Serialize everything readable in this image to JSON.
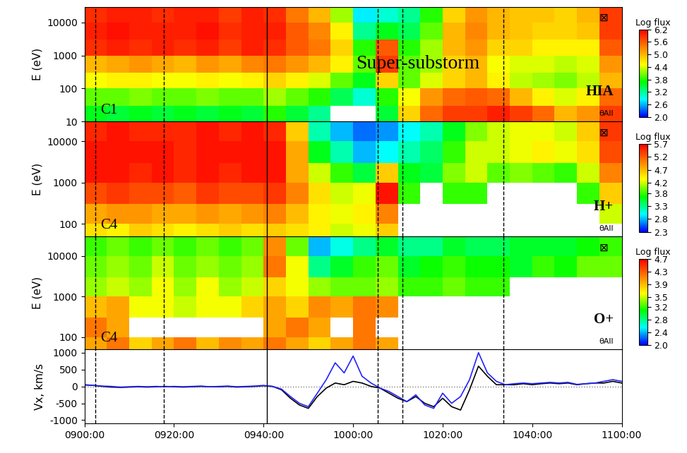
{
  "chart_data": [
    {
      "type": "heatmap",
      "ylabel": "E (eV)",
      "log": "y",
      "tick_labels": "y",
      "spacecraft": "C1",
      "instrument": "HIA",
      "angle": "θAll",
      "symbol": "⊠",
      "annotation": "Super-substorm",
      "xlim": [
        0,
        120
      ],
      "xticks": [
        {
          "value": 0,
          "label": "0900:00"
        },
        {
          "value": 20,
          "label": "0920:00"
        },
        {
          "value": 40,
          "label": "0940:00"
        },
        {
          "value": 60,
          "label": "1000:00"
        },
        {
          "value": 80,
          "label": "1020:00"
        },
        {
          "value": 100,
          "label": "1040:00"
        },
        {
          "value": 120,
          "label": "1100:00"
        }
      ],
      "ylim": [
        10,
        30000
      ],
      "yticks": [
        10,
        100,
        1000,
        10000
      ],
      "vertical_lines": [
        {
          "x": 2.4,
          "line_style": "dashed"
        },
        {
          "x": 17.7,
          "line_style": "dashed"
        },
        {
          "x": 40.8,
          "line_style": "solid"
        },
        {
          "x": 65.5,
          "line_style": "dashed"
        },
        {
          "x": 71,
          "line_style": "dashed"
        },
        {
          "x": 93.5,
          "line_style": "dashed"
        }
      ],
      "x_edges": [
        0,
        5,
        10,
        15,
        20,
        25,
        30,
        35,
        40,
        45,
        50,
        55,
        60,
        65,
        70,
        75,
        80,
        85,
        90,
        95,
        100,
        105,
        110,
        115,
        120
      ],
      "y_edges": [
        10,
        30,
        100,
        300,
        1000,
        3000,
        10000,
        30000
      ],
      "cells": [
        [
          3.6,
          3.5,
          3.6,
          3.5,
          3.6,
          3.5,
          3.6,
          3.5,
          3.8,
          3.5,
          3.2,
          null,
          null,
          3.5,
          4.8,
          5.5,
          5.8,
          5.8,
          6.0,
          5.8,
          5.5,
          5.0,
          5.2,
          5.8
        ],
        [
          4.0,
          4.0,
          4.1,
          4.0,
          4.0,
          4.1,
          4.0,
          4.0,
          4.2,
          4.0,
          3.8,
          3.4,
          3.0,
          3.8,
          4.5,
          5.2,
          5.5,
          5.6,
          5.5,
          5.0,
          4.6,
          4.4,
          4.6,
          5.5
        ],
        [
          4.5,
          4.6,
          4.6,
          4.5,
          4.5,
          4.6,
          4.5,
          4.6,
          4.8,
          4.6,
          4.4,
          4.0,
          3.6,
          4.8,
          4.0,
          4.4,
          4.8,
          5.0,
          4.6,
          4.3,
          4.2,
          4.1,
          4.3,
          5.0
        ],
        [
          5.0,
          5.1,
          5.2,
          5.1,
          5.0,
          5.2,
          5.1,
          5.3,
          5.4,
          5.2,
          5.0,
          4.6,
          4.0,
          5.8,
          4.0,
          4.2,
          4.8,
          5.0,
          4.5,
          4.4,
          4.4,
          4.3,
          4.4,
          5.2
        ],
        [
          5.9,
          6.0,
          5.9,
          6.0,
          5.9,
          6.0,
          5.8,
          6.0,
          5.9,
          5.6,
          5.4,
          4.8,
          3.8,
          5.6,
          3.8,
          4.2,
          5.0,
          5.2,
          4.8,
          4.8,
          4.6,
          4.6,
          4.6,
          5.6
        ],
        [
          6.0,
          6.1,
          6.0,
          6.0,
          6.0,
          6.1,
          5.9,
          6.0,
          6.0,
          5.6,
          5.3,
          4.6,
          3.2,
          3.6,
          3.4,
          4.0,
          5.0,
          5.3,
          5.0,
          4.9,
          4.8,
          4.8,
          4.9,
          5.8
        ],
        [
          5.9,
          6.0,
          6.0,
          5.9,
          6.0,
          6.0,
          5.8,
          6.0,
          5.9,
          5.4,
          5.0,
          4.2,
          2.8,
          3.0,
          3.2,
          3.8,
          4.8,
          5.2,
          5.0,
          4.9,
          4.9,
          4.8,
          5.0,
          5.8
        ]
      ],
      "colorbar": {
        "label": "Log flux",
        "range": [
          2.0,
          6.2
        ],
        "ticks": [
          6.2,
          5.6,
          5.0,
          4.4,
          3.8,
          3.2,
          2.6,
          2.0
        ]
      }
    },
    {
      "type": "heatmap",
      "ylabel": "E (eV)",
      "log": "y",
      "tick_labels": "y",
      "spacecraft": "C4",
      "instrument": "H+",
      "angle": "θAll",
      "symbol": "⊠",
      "xlim": [
        0,
        120
      ],
      "xticks": [
        {
          "value": 0,
          "label": "0900:00"
        },
        {
          "value": 20,
          "label": "0920:00"
        },
        {
          "value": 40,
          "label": "0940:00"
        },
        {
          "value": 60,
          "label": "1000:00"
        },
        {
          "value": 80,
          "label": "1020:00"
        },
        {
          "value": 100,
          "label": "1040:00"
        },
        {
          "value": 120,
          "label": "1100:00"
        }
      ],
      "ylim": [
        50,
        30000
      ],
      "yticks": [
        100,
        1000,
        10000
      ],
      "vertical_lines": [
        {
          "x": 2.4,
          "line_style": "dashed"
        },
        {
          "x": 17.7,
          "line_style": "dashed"
        },
        {
          "x": 40.8,
          "line_style": "solid"
        },
        {
          "x": 65.5,
          "line_style": "dashed"
        },
        {
          "x": 71,
          "line_style": "dashed"
        },
        {
          "x": 93.5,
          "line_style": "dashed"
        }
      ],
      "x_edges": [
        0,
        5,
        10,
        15,
        20,
        25,
        30,
        35,
        40,
        45,
        50,
        55,
        60,
        65,
        70,
        75,
        80,
        85,
        90,
        95,
        100,
        105,
        110,
        115,
        120
      ],
      "y_edges": [
        50,
        100,
        300,
        1000,
        3000,
        10000,
        30000
      ],
      "cells": [
        [
          4.5,
          4.4,
          4.6,
          4.5,
          4.4,
          4.5,
          4.6,
          4.5,
          4.6,
          4.5,
          4.4,
          4.2,
          4.3,
          4.6,
          null,
          null,
          null,
          null,
          null,
          null,
          null,
          null,
          null,
          null
        ],
        [
          4.8,
          4.9,
          4.9,
          4.8,
          4.8,
          4.9,
          4.8,
          4.9,
          5.0,
          4.7,
          4.4,
          4.3,
          4.4,
          5.0,
          null,
          null,
          null,
          null,
          null,
          null,
          null,
          null,
          null,
          4.2
        ],
        [
          5.3,
          5.4,
          5.3,
          5.3,
          5.2,
          5.4,
          5.3,
          5.3,
          5.4,
          5.0,
          4.5,
          4.2,
          4.3,
          5.6,
          3.8,
          null,
          3.8,
          3.8,
          null,
          null,
          null,
          null,
          3.8,
          4.6
        ],
        [
          5.6,
          5.6,
          5.5,
          5.6,
          5.5,
          5.6,
          5.5,
          5.6,
          5.6,
          4.8,
          4.2,
          3.8,
          3.5,
          4.6,
          3.6,
          3.5,
          4.0,
          4.2,
          3.9,
          4.0,
          3.9,
          3.8,
          4.2,
          5.0
        ],
        [
          5.6,
          5.6,
          5.6,
          5.6,
          5.5,
          5.6,
          5.6,
          5.6,
          5.6,
          4.8,
          3.6,
          3.2,
          2.8,
          3.0,
          3.2,
          3.4,
          3.8,
          4.2,
          4.2,
          4.3,
          4.4,
          4.3,
          4.5,
          5.3
        ],
        [
          5.5,
          5.6,
          5.5,
          5.5,
          5.5,
          5.6,
          5.5,
          5.6,
          5.5,
          4.6,
          3.2,
          2.8,
          2.6,
          2.7,
          3.0,
          3.2,
          3.6,
          4.0,
          4.2,
          4.3,
          4.3,
          4.2,
          4.6,
          5.4
        ]
      ],
      "colorbar": {
        "label": "Log flux",
        "range": [
          2.3,
          5.7
        ],
        "ticks": [
          5.7,
          5.2,
          4.7,
          4.2,
          3.8,
          3.3,
          2.8,
          2.3
        ]
      }
    },
    {
      "type": "heatmap",
      "ylabel": "E (eV)",
      "log": "y",
      "tick_labels": "y",
      "spacecraft": "C4",
      "instrument": "O+",
      "angle": "θAll",
      "symbol": "⊠",
      "xlim": [
        0,
        120
      ],
      "xticks": [
        {
          "value": 0,
          "label": "0900:00"
        },
        {
          "value": 20,
          "label": "0920:00"
        },
        {
          "value": 40,
          "label": "0940:00"
        },
        {
          "value": 60,
          "label": "1000:00"
        },
        {
          "value": 80,
          "label": "1020:00"
        },
        {
          "value": 100,
          "label": "1040:00"
        },
        {
          "value": 120,
          "label": "1100:00"
        }
      ],
      "ylim": [
        50,
        30000
      ],
      "yticks": [
        100,
        1000,
        10000
      ],
      "vertical_lines": [
        {
          "x": 2.4,
          "line_style": "dashed"
        },
        {
          "x": 17.7,
          "line_style": "dashed"
        },
        {
          "x": 40.8,
          "line_style": "solid"
        },
        {
          "x": 65.5,
          "line_style": "dashed"
        },
        {
          "x": 71,
          "line_style": "dashed"
        },
        {
          "x": 93.5,
          "line_style": "dashed"
        }
      ],
      "x_edges": [
        0,
        5,
        10,
        15,
        20,
        25,
        30,
        35,
        40,
        45,
        50,
        55,
        60,
        65,
        70,
        75,
        80,
        85,
        90,
        95,
        100,
        105,
        110,
        115,
        120
      ],
      "y_edges": [
        50,
        100,
        300,
        1000,
        3000,
        10000,
        30000
      ],
      "cells": [
        [
          4.0,
          4.2,
          3.8,
          4.0,
          4.2,
          3.9,
          4.1,
          4.0,
          4.2,
          4.0,
          3.8,
          4.0,
          4.2,
          4.0,
          null,
          null,
          null,
          null,
          null,
          null,
          null,
          null,
          null,
          null
        ],
        [
          4.2,
          4.0,
          null,
          null,
          null,
          null,
          null,
          null,
          4.0,
          4.2,
          4.0,
          null,
          4.2,
          null,
          null,
          null,
          null,
          null,
          null,
          null,
          null,
          null,
          null,
          null
        ],
        [
          3.9,
          4.0,
          3.6,
          3.6,
          3.5,
          3.6,
          3.6,
          3.8,
          4.0,
          3.8,
          4.1,
          4.0,
          4.2,
          4.1,
          null,
          null,
          null,
          null,
          null,
          null,
          null,
          null,
          null,
          null
        ],
        [
          3.4,
          3.5,
          3.4,
          3.6,
          3.4,
          3.6,
          3.4,
          3.5,
          3.8,
          3.6,
          3.4,
          3.3,
          3.3,
          3.4,
          3.2,
          3.2,
          3.3,
          3.2,
          3.2,
          null,
          null,
          null,
          null,
          null
        ],
        [
          3.3,
          3.4,
          3.3,
          3.5,
          3.3,
          3.4,
          3.3,
          3.4,
          4.2,
          3.6,
          2.8,
          3.0,
          3.2,
          3.3,
          3.0,
          3.1,
          3.2,
          3.1,
          3.1,
          3.0,
          3.2,
          3.1,
          3.3,
          3.3
        ],
        [
          3.2,
          3.3,
          3.2,
          3.3,
          3.2,
          3.3,
          3.2,
          3.3,
          4.1,
          3.3,
          2.4,
          2.6,
          2.8,
          3.0,
          2.8,
          2.8,
          3.0,
          2.9,
          2.9,
          3.0,
          3.0,
          3.0,
          3.1,
          3.2
        ]
      ],
      "colorbar": {
        "label": "Log flux",
        "range": [
          2.0,
          4.7
        ],
        "ticks": [
          4.7,
          4.3,
          3.9,
          3.5,
          3.2,
          2.8,
          2.4,
          2.0
        ]
      }
    },
    {
      "type": "line",
      "ylabel": "Vx, km/s",
      "xlim": [
        0,
        120
      ],
      "xticks": [
        {
          "value": 0,
          "label": "0900:00"
        },
        {
          "value": 20,
          "label": "0920:00"
        },
        {
          "value": 40,
          "label": "0940:00"
        },
        {
          "value": 60,
          "label": "1000:00"
        },
        {
          "value": 80,
          "label": "1020:00"
        },
        {
          "value": 100,
          "label": "1040:00"
        },
        {
          "value": 120,
          "label": "1100:00"
        }
      ],
      "ylim": [
        -1100,
        1100
      ],
      "yticks": [
        -1000,
        -500,
        0,
        500,
        1000
      ],
      "reference_line": 0,
      "vertical_lines": [
        {
          "x": 2.4,
          "line_style": "dashed"
        },
        {
          "x": 17.7,
          "line_style": "dashed"
        },
        {
          "x": 40.8,
          "line_style": "solid"
        },
        {
          "x": 65.5,
          "line_style": "dashed"
        },
        {
          "x": 71,
          "line_style": "dashed"
        },
        {
          "x": 93.5,
          "line_style": "dashed"
        }
      ],
      "x": [
        0,
        2,
        4,
        6,
        8,
        10,
        12,
        14,
        16,
        18,
        20,
        22,
        24,
        26,
        28,
        30,
        32,
        34,
        36,
        38,
        40,
        42,
        44,
        46,
        48,
        50,
        52,
        54,
        56,
        58,
        60,
        62,
        64,
        66,
        68,
        70,
        72,
        74,
        76,
        78,
        80,
        82,
        84,
        86,
        88,
        90,
        92,
        94,
        96,
        98,
        100,
        102,
        104,
        106,
        108,
        110,
        112,
        114,
        116,
        118,
        120
      ],
      "series": [
        {
          "color": "#000000",
          "values": [
            50,
            30,
            0,
            -20,
            -30,
            -20,
            -10,
            -20,
            -10,
            0,
            -10,
            -20,
            -10,
            0,
            -10,
            -10,
            0,
            -20,
            -10,
            0,
            20,
            0,
            -100,
            -350,
            -550,
            -650,
            -300,
            -50,
            100,
            50,
            150,
            100,
            0,
            -50,
            -200,
            -350,
            -450,
            -300,
            -500,
            -600,
            -350,
            -600,
            -700,
            -100,
            600,
            300,
            50,
            50,
            50,
            80,
            50,
            80,
            100,
            80,
            100,
            50,
            80,
            100,
            100,
            150,
            100
          ]
        },
        {
          "color": "#2222ff",
          "values": [
            40,
            30,
            10,
            0,
            -20,
            -10,
            0,
            -10,
            0,
            -10,
            0,
            -10,
            0,
            10,
            -10,
            0,
            10,
            -10,
            0,
            10,
            30,
            0,
            -80,
            -300,
            -500,
            -600,
            -200,
            200,
            700,
            400,
            900,
            300,
            100,
            -50,
            -150,
            -300,
            -450,
            -250,
            -550,
            -650,
            -200,
            -500,
            -300,
            200,
            1000,
            400,
            150,
            50,
            80,
            100,
            80,
            100,
            120,
            100,
            120,
            60,
            80,
            100,
            150,
            200,
            150
          ]
        }
      ]
    }
  ]
}
